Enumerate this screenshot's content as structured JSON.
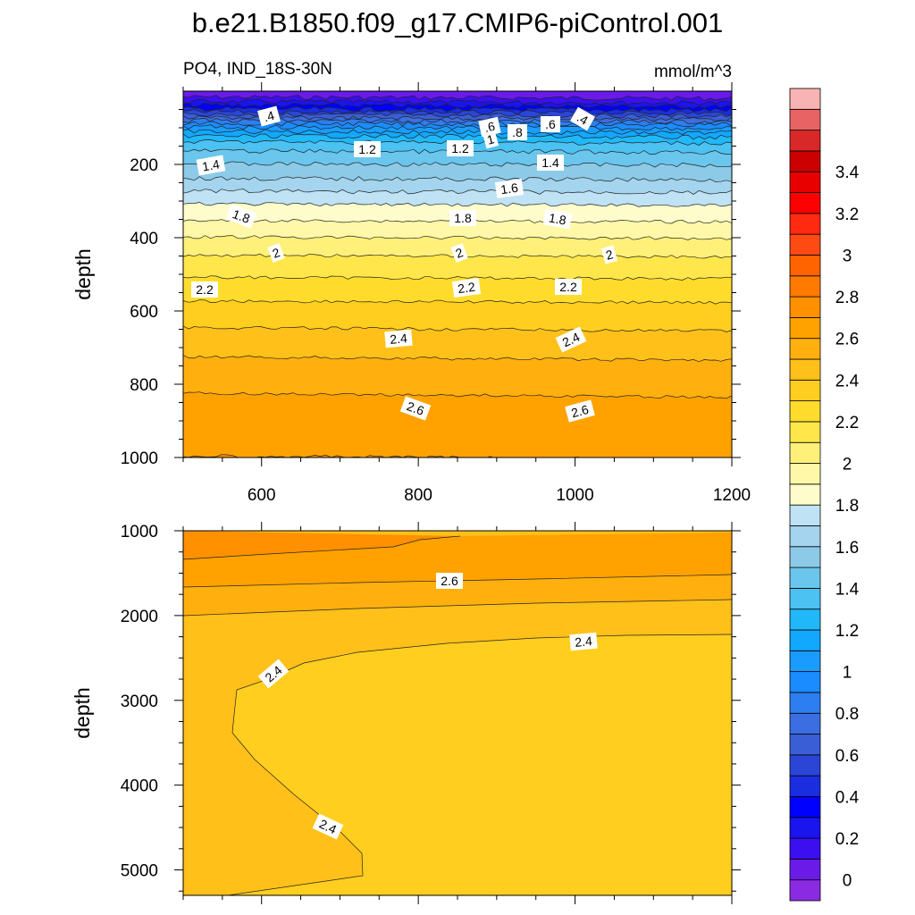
{
  "chart_data": {
    "type": "heatmap",
    "title": "b.e21.B1850.f09_g17.CMIP6-piControl.001",
    "left_subtitle": "PO4, IND_18S-30N",
    "right_subtitle": "mmol/m^3",
    "ylabel": "depth",
    "upper_panel": {
      "xlim": [
        500,
        1200
      ],
      "ylim": [
        0,
        1000
      ],
      "x_ticks": [
        "600",
        "800",
        "1000",
        "1200"
      ],
      "y_ticks": [
        "200",
        "400",
        "600",
        "800",
        "1000"
      ],
      "contour_labels": [
        ".6",
        ".4",
        "1.2",
        "1.2",
        "1",
        ".8",
        ".6",
        ".4",
        "1.4",
        "1.4",
        "1.6",
        "1.8",
        "1.8",
        "1.8",
        "2",
        "2",
        "2",
        "2.2",
        "2.2",
        "2.2",
        "2.4",
        "2.4",
        "2.6",
        "2.6"
      ]
    },
    "lower_panel": {
      "ylim": [
        1000,
        5300
      ],
      "y_ticks": [
        "1000",
        "2000",
        "3000",
        "4000",
        "5000"
      ],
      "contour_labels": [
        "2.6",
        "2.4",
        "2.4",
        "2.4"
      ]
    },
    "colorbar": {
      "levels": [
        0,
        0.1,
        0.2,
        0.3,
        0.4,
        0.5,
        0.6,
        0.7,
        0.8,
        0.9,
        1.0,
        1.1,
        1.2,
        1.3,
        1.4,
        1.5,
        1.6,
        1.7,
        1.8,
        1.9,
        2.0,
        2.1,
        2.2,
        2.3,
        2.4,
        2.5,
        2.6,
        2.7,
        2.8,
        2.9,
        3.0,
        3.1,
        3.2,
        3.3,
        3.4,
        3.5
      ],
      "tick_labels": [
        "0",
        "0.2",
        "0.4",
        "0.6",
        "0.8",
        "1",
        "1.2",
        "1.4",
        "1.6",
        "1.8",
        "2",
        "2.2",
        "2.4",
        "2.6",
        "2.8",
        "3",
        "3.2",
        "3.4"
      ],
      "colors": [
        "#8a2be2",
        "#6a1be8",
        "#3b0ff0",
        "#1a14ee",
        "#0000ff",
        "#1a2ee0",
        "#2b46d6",
        "#3a5ed6",
        "#3b6ee0",
        "#2d7ef0",
        "#1a8cff",
        "#1a9cff",
        "#12a8ff",
        "#20b8f8",
        "#4cc2f2",
        "#6ac6ec",
        "#8ccae8",
        "#a4d4ee",
        "#bfe2f4",
        "#fffccc",
        "#fff8a8",
        "#fff07a",
        "#ffe64a",
        "#ffdc2c",
        "#ffce1e",
        "#ffc01a",
        "#ffb00e",
        "#ffa200",
        "#ff9000",
        "#ff7a00",
        "#ff6400",
        "#ff4a14",
        "#ff2a10",
        "#ff0000",
        "#e80000",
        "#cc0000",
        "#d82828",
        "#e86464",
        "#f8b4b4"
      ]
    }
  }
}
